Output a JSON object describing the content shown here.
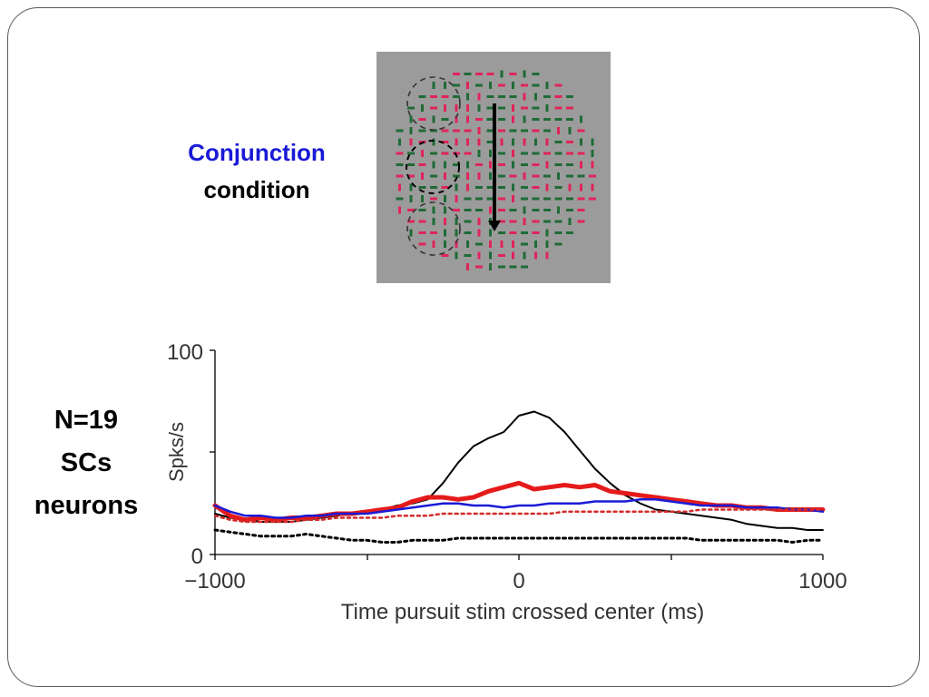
{
  "slide": {
    "condition_line1": "Conjunction",
    "condition_line2": "condition",
    "neurons_line1": "N=19",
    "neurons_line2": "SCs",
    "neurons_line3": "neurons",
    "condition_color": "#1a1ad6"
  },
  "stimulus": {
    "background_color": "#9b9b9b",
    "red_color": "#e0245a",
    "green_color": "#1f6b36"
  },
  "chart_data": {
    "type": "line",
    "title": "",
    "xlabel": "Time pursuit stim crossed center (ms)",
    "ylabel": "Spks/s",
    "xlim": [
      -1000,
      1000
    ],
    "ylim": [
      0,
      100
    ],
    "x_ticks": [
      "−1000",
      "0",
      "1000"
    ],
    "y_ticks": [
      "0",
      "100"
    ],
    "legend": "none",
    "series": [
      {
        "color": "#000000",
        "style": "solid",
        "width": 2,
        "x": [
          -1000,
          -950,
          -900,
          -850,
          -800,
          -750,
          -700,
          -650,
          -600,
          -550,
          -500,
          -450,
          -400,
          -350,
          -300,
          -250,
          -200,
          -150,
          -100,
          -50,
          0,
          50,
          100,
          150,
          200,
          250,
          300,
          350,
          400,
          450,
          500,
          550,
          600,
          650,
          700,
          750,
          800,
          850,
          900,
          950,
          1000
        ],
        "y": [
          20,
          18,
          17,
          16,
          16,
          16,
          17,
          18,
          19,
          20,
          21,
          22,
          24,
          25,
          27,
          35,
          45,
          53,
          57,
          60,
          68,
          70,
          67,
          60,
          51,
          42,
          35,
          29,
          25,
          22,
          21,
          20,
          19,
          18,
          17,
          15,
          14,
          13,
          13,
          12,
          12
        ]
      },
      {
        "color": "#e51b1b",
        "style": "solid",
        "width": 5,
        "x": [
          -1000,
          -950,
          -900,
          -850,
          -800,
          -750,
          -700,
          -650,
          -600,
          -550,
          -500,
          -450,
          -400,
          -350,
          -300,
          -250,
          -200,
          -150,
          -100,
          -50,
          0,
          50,
          100,
          150,
          200,
          250,
          300,
          350,
          400,
          450,
          500,
          550,
          600,
          650,
          700,
          750,
          800,
          850,
          900,
          950,
          1000
        ],
        "y": [
          24,
          19,
          17,
          18,
          17,
          18,
          18,
          19,
          20,
          20,
          21,
          22,
          23,
          26,
          28,
          28,
          27,
          28,
          31,
          33,
          35,
          32,
          33,
          34,
          33,
          34,
          31,
          30,
          29,
          28,
          27,
          26,
          25,
          24,
          24,
          23,
          23,
          22,
          22,
          22,
          22
        ]
      },
      {
        "color": "#1a1ad6",
        "style": "solid",
        "width": 2.5,
        "x": [
          -1000,
          -950,
          -900,
          -850,
          -800,
          -750,
          -700,
          -650,
          -600,
          -550,
          -500,
          -450,
          -400,
          -350,
          -300,
          -250,
          -200,
          -150,
          -100,
          -50,
          0,
          50,
          100,
          150,
          200,
          250,
          300,
          350,
          400,
          450,
          500,
          550,
          600,
          650,
          700,
          750,
          800,
          850,
          900,
          950,
          1000
        ],
        "y": [
          24,
          21,
          19,
          19,
          18,
          18,
          19,
          19,
          20,
          20,
          20,
          21,
          22,
          23,
          24,
          25,
          25,
          24,
          24,
          23,
          24,
          24,
          25,
          25,
          25,
          26,
          26,
          26,
          27,
          27,
          26,
          25,
          24,
          24,
          24,
          23,
          23,
          23,
          22,
          22,
          21
        ]
      },
      {
        "color": "#d42a2a",
        "style": "dotted",
        "width": 2.5,
        "x": [
          -1000,
          -950,
          -900,
          -850,
          -800,
          -750,
          -700,
          -650,
          -600,
          -550,
          -500,
          -450,
          -400,
          -350,
          -300,
          -250,
          -200,
          -150,
          -100,
          -50,
          0,
          50,
          100,
          150,
          200,
          250,
          300,
          350,
          400,
          450,
          500,
          550,
          600,
          650,
          700,
          750,
          800,
          850,
          900,
          950,
          1000
        ],
        "y": [
          19,
          17,
          16,
          16,
          16,
          16,
          17,
          17,
          18,
          18,
          18,
          18,
          19,
          19,
          19,
          20,
          20,
          20,
          20,
          20,
          20,
          20,
          20,
          21,
          21,
          21,
          21,
          21,
          21,
          21,
          21,
          21,
          22,
          22,
          22,
          22,
          22,
          22,
          22,
          22,
          22
        ]
      },
      {
        "color": "#000000",
        "style": "dotted",
        "width": 3,
        "x": [
          -1000,
          -950,
          -900,
          -850,
          -800,
          -750,
          -700,
          -650,
          -600,
          -550,
          -500,
          -450,
          -400,
          -350,
          -300,
          -250,
          -200,
          -150,
          -100,
          -50,
          0,
          50,
          100,
          150,
          200,
          250,
          300,
          350,
          400,
          450,
          500,
          550,
          600,
          650,
          700,
          750,
          800,
          850,
          900,
          950,
          1000
        ],
        "y": [
          12,
          11,
          10,
          9,
          9,
          9,
          10,
          9,
          8,
          7,
          7,
          6,
          6,
          7,
          7,
          7,
          8,
          8,
          8,
          8,
          8,
          8,
          8,
          8,
          8,
          8,
          8,
          8,
          8,
          8,
          8,
          8,
          7,
          7,
          7,
          7,
          7,
          7,
          6,
          7,
          7
        ]
      }
    ]
  }
}
